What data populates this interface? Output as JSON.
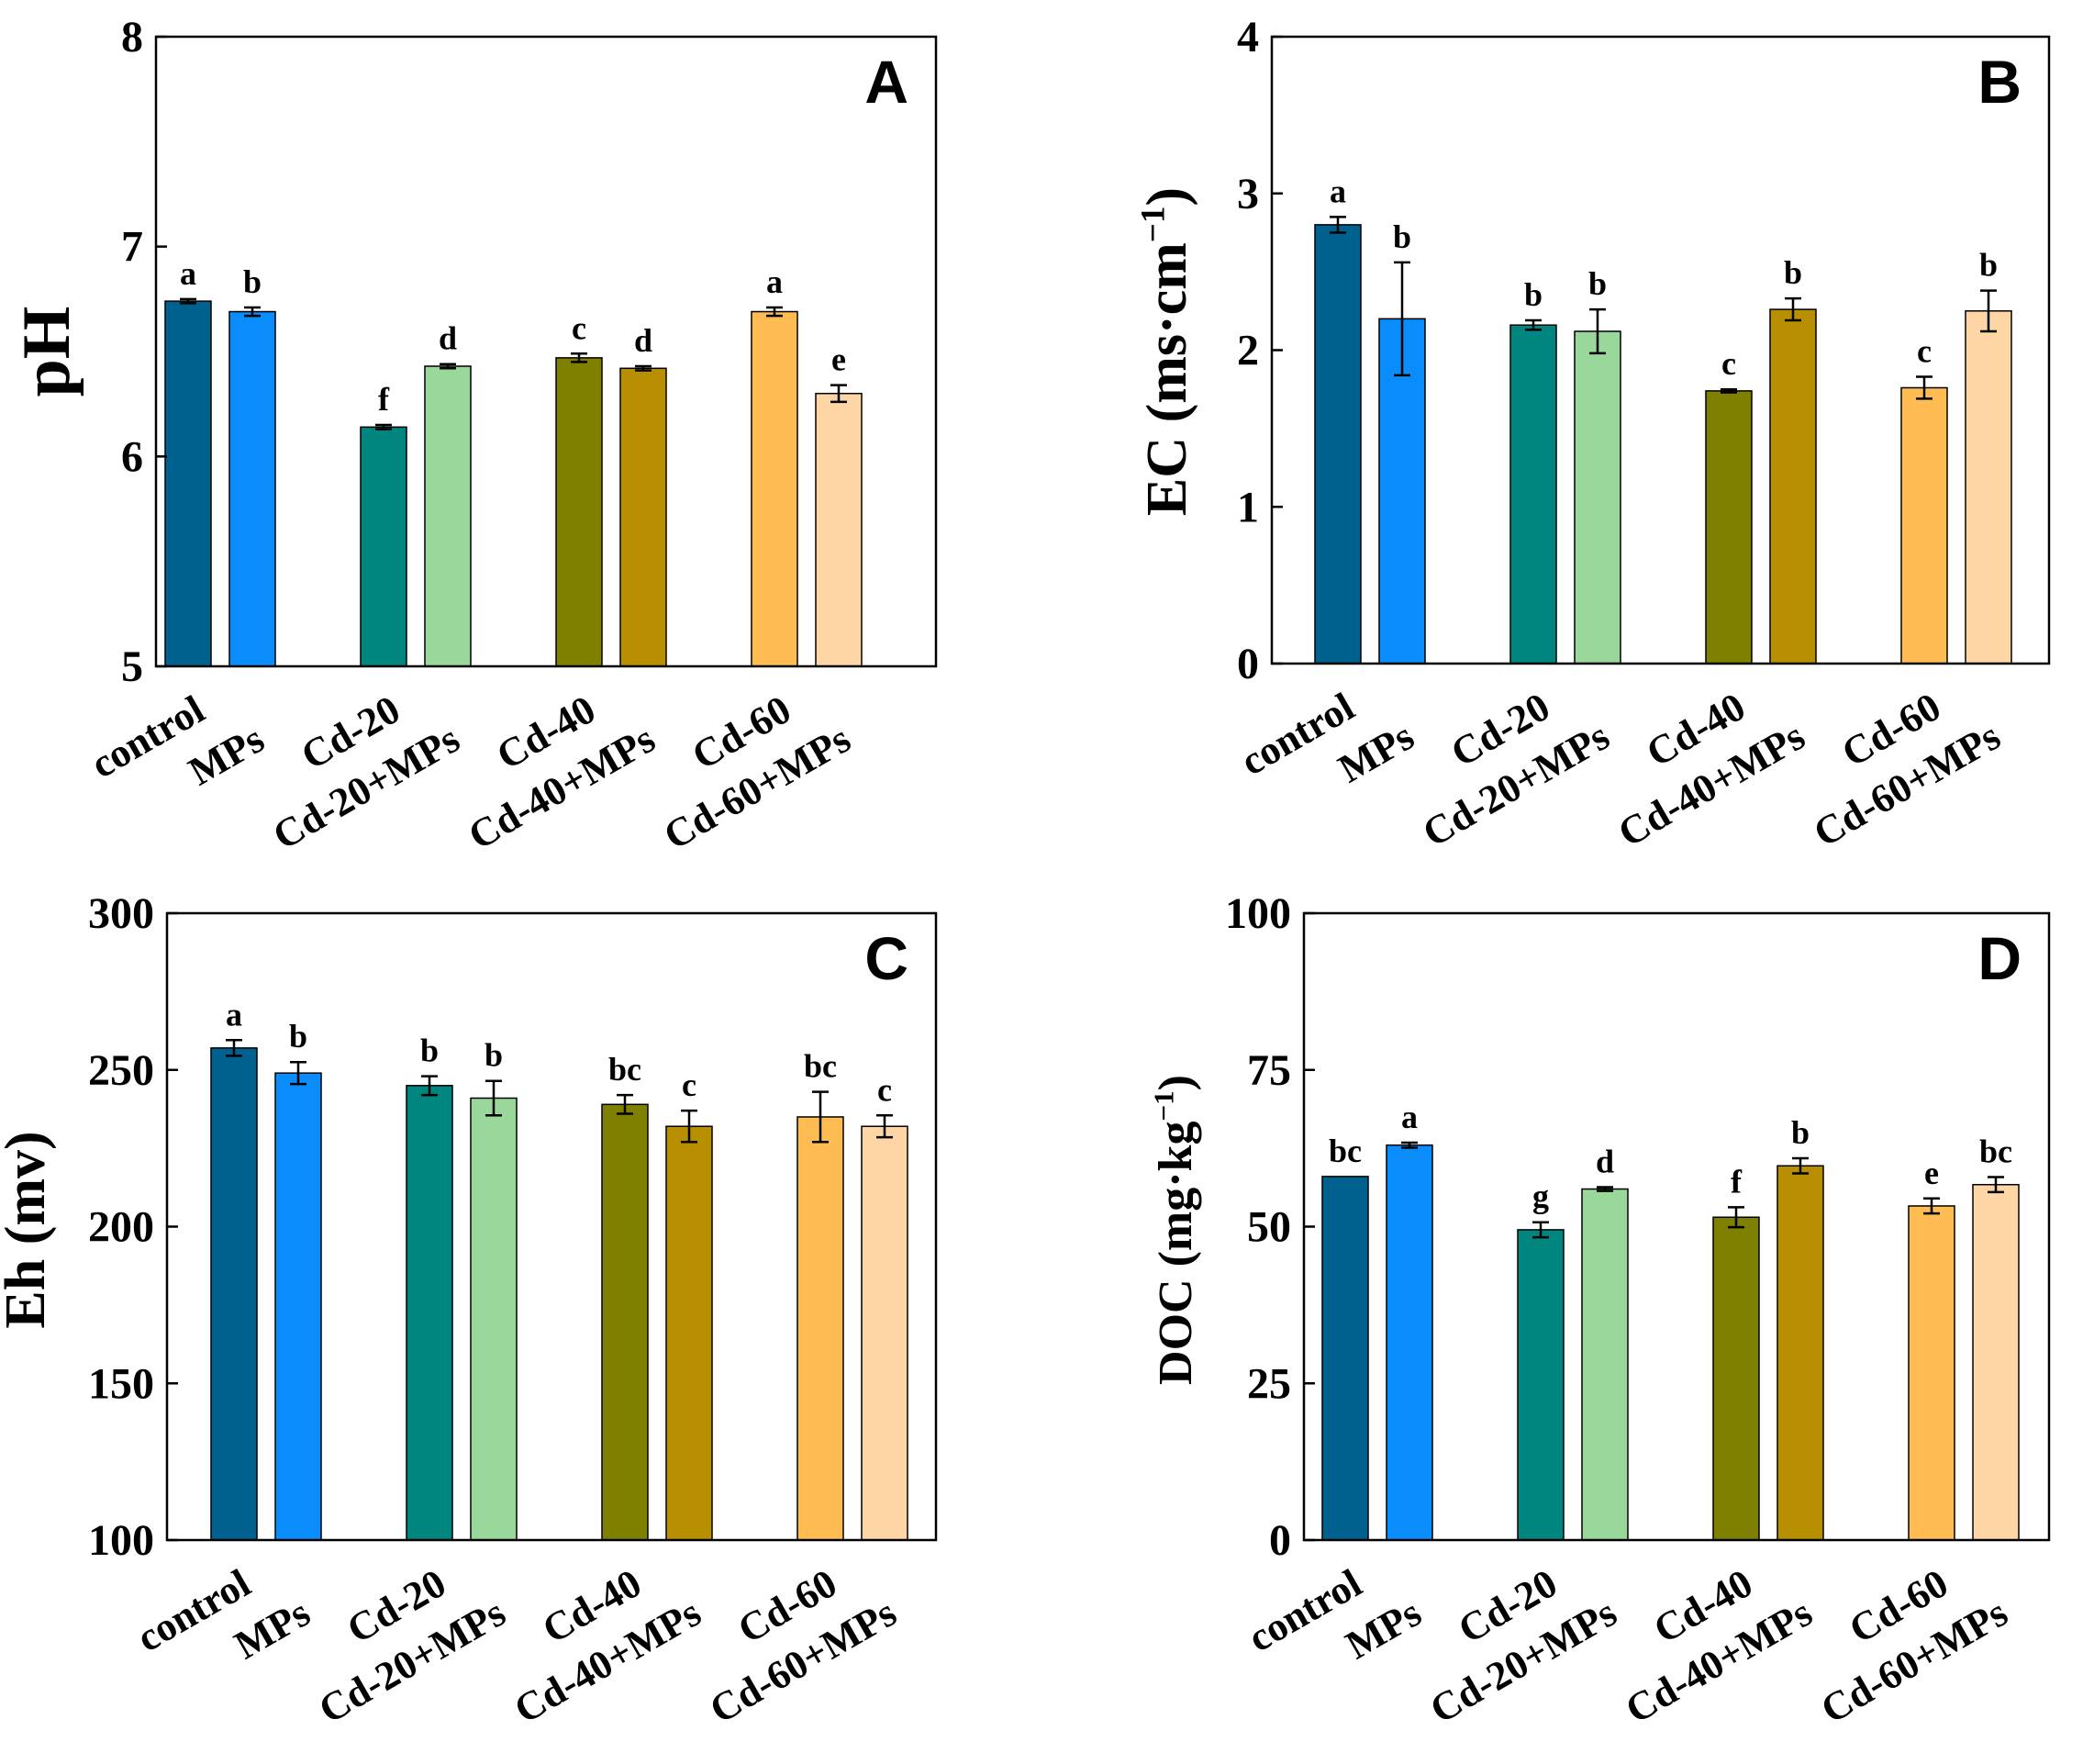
{
  "colors": [
    "#00618F",
    "#0A8CFB",
    "#00857F",
    "#9AD79A",
    "#7F7F00",
    "#B88F00",
    "#FEBC52",
    "#FED6A6"
  ],
  "chart_data": [
    {
      "id": "A",
      "type": "bar",
      "panel_label": "A",
      "ylabel": "pH",
      "ylim": [
        5,
        8
      ],
      "yticks": [
        "5",
        "6",
        "7",
        "8"
      ],
      "categories": [
        "control",
        "MPs",
        "Cd-20",
        "Cd-20+MPs",
        "Cd-40",
        "Cd-40+MPs",
        "Cd-60",
        "Cd-60+MPs"
      ],
      "values": [
        6.74,
        6.69,
        6.14,
        6.43,
        6.47,
        6.42,
        6.69,
        6.3
      ],
      "errors": [
        0.01,
        0.02,
        0.01,
        0.01,
        0.02,
        0.01,
        0.02,
        0.04
      ],
      "labels": [
        "a",
        "b",
        "f",
        "d",
        "c",
        "d",
        "a",
        "e"
      ]
    },
    {
      "id": "B",
      "type": "bar",
      "panel_label": "B",
      "ylabel": "EC (ms·cm",
      "ylabel_sup": "−1",
      "ylabel_end": ")",
      "ylim": [
        0,
        4
      ],
      "yticks": [
        "0",
        "1",
        "2",
        "3",
        "4"
      ],
      "categories": [
        "control",
        "MPs",
        "Cd-20",
        "Cd-20+MPs",
        "Cd-40",
        "Cd-40+MPs",
        "Cd-60",
        "Cd-60+MPs"
      ],
      "values": [
        2.8,
        2.2,
        2.16,
        2.12,
        1.74,
        2.26,
        1.76,
        2.25
      ],
      "errors": [
        0.05,
        0.36,
        0.03,
        0.14,
        0.01,
        0.07,
        0.07,
        0.13
      ],
      "labels": [
        "a",
        "b",
        "b",
        "b",
        "c",
        "b",
        "c",
        "b"
      ]
    },
    {
      "id": "C",
      "type": "bar",
      "panel_label": "C",
      "ylabel": "Eh (mv)",
      "ylim": [
        100,
        300
      ],
      "yticks": [
        "100",
        "150",
        "200",
        "250",
        "300"
      ],
      "categories": [
        "control",
        "MPs",
        "Cd-20",
        "Cd-20+MPs",
        "Cd-40",
        "Cd-40+MPs",
        "Cd-60",
        "Cd-60+MPs"
      ],
      "values": [
        257,
        249,
        245,
        241,
        239,
        232,
        235,
        232
      ],
      "errors": [
        2.5,
        3.5,
        3,
        5.5,
        3,
        5,
        8,
        3.5
      ],
      "labels": [
        "a",
        "b",
        "b",
        "b",
        "bc",
        "c",
        "bc",
        "c"
      ]
    },
    {
      "id": "D",
      "type": "bar",
      "panel_label": "D",
      "ylabel": "DOC (mg·kg",
      "ylabel_sup": "−1",
      "ylabel_end": ")",
      "ylim": [
        0,
        100
      ],
      "yticks": [
        "0",
        "25",
        "50",
        "75",
        "100"
      ],
      "categories": [
        "control",
        "MPs",
        "Cd-20",
        "Cd-20+MPs",
        "Cd-40",
        "Cd-40+MPs",
        "Cd-60",
        "Cd-60+MPs"
      ],
      "values": [
        58.0,
        63.0,
        49.5,
        56.0,
        51.5,
        59.7,
        53.3,
        56.7
      ],
      "errors": [
        0,
        0.4,
        1.2,
        0.3,
        1.6,
        1.2,
        1.2,
        1.2
      ],
      "labels": [
        "bc",
        "a",
        "g",
        "d",
        "f",
        "b",
        "e",
        "bc"
      ]
    }
  ]
}
